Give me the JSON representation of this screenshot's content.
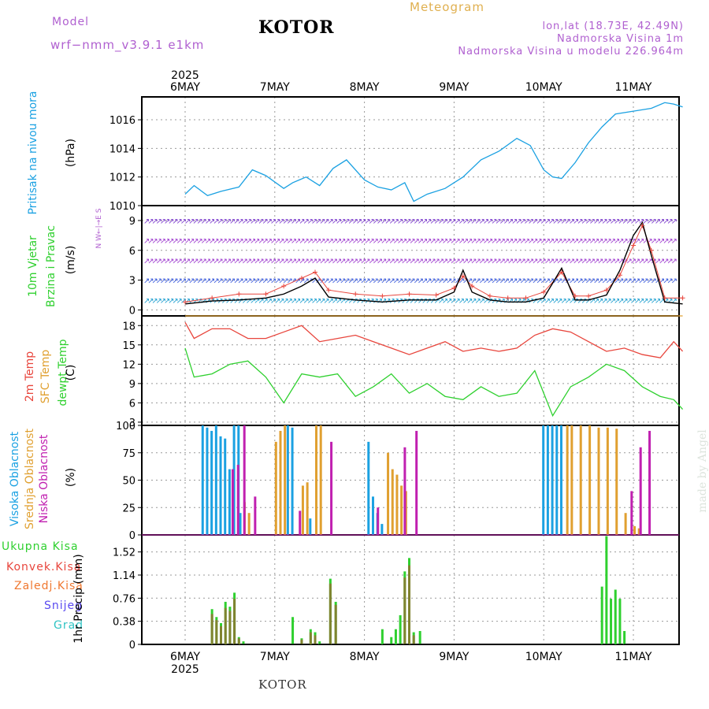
{
  "header": {
    "model_label": "Model",
    "model_name": "wrf−nmm_v3.9.1 e1km",
    "title": "KOTOR",
    "subtitle": "Meteogram",
    "lonlat": "lon,lat (18.73E, 42.49N)",
    "altitude": "Nadmorska Visina 1m",
    "model_altitude": "Nadmorska Visina u modelu 226.964m"
  },
  "footer": {
    "station": "KOTOR",
    "watermark": "made by Angel"
  },
  "colors": {
    "pressure": "#1ba1e2",
    "temp": "#e8453c",
    "sfc": "#e0a030",
    "dew": "#2fd02f",
    "high": "#1ba1e2",
    "mid": "#e0a030",
    "low": "#c020b0",
    "precip": "#2fd02f",
    "conv": "#e8453c",
    "snow": "#5a4af0",
    "grad": "#2fc4c4"
  },
  "chart_data": [
    {
      "type": "line",
      "panel": "pressure",
      "ylabel": [
        "Pritisak na nivou mora",
        "(hPa)"
      ],
      "ylim": [
        1010,
        1017.6
      ],
      "yticks": [
        "1010",
        "1012",
        "1014",
        "1016"
      ],
      "x_categories_top": [
        "6MAY",
        "7MAY",
        "8MAY",
        "9MAY",
        "10MAY",
        "11MAY"
      ],
      "year": "2025",
      "x": [
        0,
        0.1,
        0.25,
        0.4,
        0.6,
        0.75,
        0.9,
        1.1,
        1.2,
        1.35,
        1.5,
        1.65,
        1.8,
        2.0,
        2.15,
        2.3,
        2.45,
        2.55,
        2.7,
        2.9,
        3.1,
        3.3,
        3.5,
        3.7,
        3.85,
        4.0,
        4.1,
        4.2,
        4.35,
        4.5,
        4.65,
        4.8,
        5.0,
        5.2,
        5.35,
        5.45,
        5.55
      ],
      "series": [
        {
          "values": [
            1010.8,
            1011.4,
            1010.7,
            1011.0,
            1011.3,
            1012.5,
            1012.1,
            1011.2,
            1011.6,
            1012.0,
            1011.4,
            1012.6,
            1013.2,
            1011.8,
            1011.3,
            1011.1,
            1011.6,
            1010.3,
            1010.8,
            1011.2,
            1012.0,
            1013.2,
            1013.8,
            1014.7,
            1014.2,
            1012.5,
            1012.0,
            1011.9,
            1013.0,
            1014.4,
            1015.5,
            1016.4,
            1016.6,
            1016.8,
            1017.2,
            1017.1,
            1016.9
          ]
        }
      ]
    },
    {
      "type": "line",
      "panel": "wind",
      "ylabel": [
        "10m Vjetar",
        "Brzina i Pravac",
        "(m/s)"
      ],
      "ylim": [
        -0.6,
        10.5
      ],
      "yticks": [
        "0",
        "3",
        "6",
        "9"
      ],
      "compass": "N W←|→E S",
      "x": [
        0,
        0.3,
        0.6,
        0.9,
        1.1,
        1.3,
        1.45,
        1.6,
        1.9,
        2.2,
        2.5,
        2.8,
        3.0,
        3.1,
        3.2,
        3.4,
        3.6,
        3.8,
        4.0,
        4.2,
        4.35,
        4.5,
        4.7,
        4.85,
        5.0,
        5.1,
        5.2,
        5.35,
        5.55
      ],
      "series": [
        {
          "values": [
            0.8,
            1.2,
            1.6,
            1.6,
            2.4,
            3.2,
            3.8,
            2.0,
            1.6,
            1.4,
            1.6,
            1.5,
            2.2,
            3.4,
            2.4,
            1.4,
            1.2,
            1.2,
            1.8,
            3.8,
            1.4,
            1.4,
            2.0,
            3.5,
            6.5,
            8.5,
            6.0,
            1.2,
            1.2
          ],
          "color": "#e8453c"
        },
        {
          "values": [
            0.6,
            0.9,
            1.0,
            1.2,
            1.6,
            2.4,
            3.2,
            1.3,
            1.0,
            0.8,
            1.0,
            1.0,
            1.8,
            4.0,
            1.8,
            1.0,
            0.8,
            0.8,
            1.2,
            4.2,
            1.0,
            1.0,
            1.5,
            4.0,
            7.5,
            8.8,
            5.5,
            0.8,
            0.6
          ],
          "color": "#000000"
        }
      ]
    },
    {
      "type": "line",
      "panel": "temperature",
      "ylabel": [
        "2m Temp",
        "SFC Temp",
        "dewpt Temp",
        "(C)"
      ],
      "ylim": [
        2.5,
        19.5
      ],
      "yticks": [
        "3",
        "6",
        "9",
        "12",
        "15",
        "18"
      ],
      "x": [
        0,
        0.1,
        0.3,
        0.5,
        0.7,
        0.9,
        1.1,
        1.3,
        1.5,
        1.7,
        1.9,
        2.1,
        2.3,
        2.5,
        2.7,
        2.9,
        3.1,
        3.3,
        3.5,
        3.7,
        3.9,
        4.1,
        4.3,
        4.5,
        4.7,
        4.9,
        5.1,
        5.3,
        5.45,
        5.55
      ],
      "series": [
        {
          "name": "2m Temp",
          "values": [
            18.5,
            16.0,
            17.5,
            17.5,
            16.0,
            16.0,
            17.0,
            18.0,
            15.5,
            16.0,
            16.5,
            15.5,
            14.5,
            13.5,
            14.5,
            15.5,
            14.0,
            14.5,
            14.0,
            14.5,
            16.5,
            17.5,
            17.0,
            15.5,
            14.0,
            14.5,
            13.5,
            13.0,
            15.5,
            14.0
          ],
          "color": "#e8453c"
        },
        {
          "name": "SFC Temp",
          "values": [
            19.5,
            19.5,
            19.5,
            19.5,
            19.5,
            19.5,
            19.5,
            19.5,
            19.5,
            19.5,
            19.5,
            19.5,
            19.5,
            19.5,
            19.5,
            19.5,
            19.5,
            19.5,
            19.5,
            19.5,
            19.5,
            19.5,
            19.5,
            19.5,
            19.5,
            19.5,
            19.5,
            19.5,
            19.5,
            19.5
          ],
          "color": "#e0a030"
        },
        {
          "name": "dewpt Temp",
          "values": [
            14.5,
            10.0,
            10.5,
            12.0,
            12.5,
            10.0,
            6.0,
            10.5,
            10.0,
            10.5,
            7.0,
            8.5,
            10.5,
            7.5,
            9.0,
            7.0,
            6.5,
            8.5,
            7.0,
            7.5,
            11.0,
            4.0,
            8.5,
            10.0,
            12.0,
            11.0,
            8.5,
            7.0,
            6.5,
            5.0
          ],
          "color": "#2fd02f"
        }
      ]
    },
    {
      "type": "bar",
      "panel": "cloud",
      "ylabel": [
        "Visoka Oblacnost",
        "Srednja Oblacnost",
        "Niska Oblacnost",
        "(%)"
      ],
      "ylim": [
        0,
        100
      ],
      "yticks": [
        "0",
        "25",
        "50",
        "75",
        "100"
      ],
      "series": [
        {
          "name": "Visoka Oblacnost",
          "color": "#1ba1e2",
          "x": [
            0.2,
            0.25,
            0.3,
            0.35,
            0.4,
            0.45,
            0.5,
            0.55,
            0.6,
            0.62,
            1.15,
            1.2,
            1.4,
            2.05,
            2.1,
            2.15,
            2.2,
            4.0,
            4.05,
            4.1,
            4.15,
            4.2
          ],
          "values": [
            100,
            98,
            95,
            100,
            90,
            88,
            60,
            100,
            100,
            20,
            100,
            98,
            15,
            85,
            35,
            20,
            10,
            100,
            100,
            100,
            100,
            100
          ]
        },
        {
          "name": "Srednja Oblacnost",
          "color": "#e0a030",
          "x": [
            0.65,
            0.7,
            1.0,
            1.05,
            1.1,
            1.3,
            1.35,
            1.45,
            1.5,
            2.25,
            2.3,
            2.35,
            2.4,
            2.45,
            4.25,
            4.3,
            4.4,
            4.5,
            4.6,
            4.7,
            4.8,
            4.9,
            5.0,
            5.05
          ],
          "values": [
            30,
            20,
            85,
            95,
            100,
            45,
            48,
            100,
            100,
            75,
            60,
            55,
            45,
            40,
            100,
            100,
            100,
            100,
            98,
            98,
            97,
            20,
            8,
            6
          ]
        },
        {
          "name": "Niska Oblacnost",
          "color": "#c020b0",
          "x": [
            0.5,
            0.56,
            0.63,
            0.75,
            1.25,
            1.6,
            2.12,
            2.42,
            2.55,
            4.95,
            5.05,
            5.15
          ],
          "values": [
            60,
            64,
            100,
            35,
            22,
            85,
            25,
            80,
            95,
            40,
            80,
            95
          ]
        }
      ]
    },
    {
      "type": "bar",
      "panel": "precip",
      "ylabel": [
        "Ukupna Kisa",
        "Konvek.Kisa",
        "Zaledj.Kisa",
        "Snijeg",
        "Grad",
        "1hr Precip (mm)"
      ],
      "ylim": [
        0,
        1.8
      ],
      "yticks": [
        "0",
        "0.38",
        "0.76",
        "1.14",
        "1.52"
      ],
      "x_categories_bottom": [
        "6MAY",
        "7MAY",
        "8MAY",
        "9MAY",
        "10MAY",
        "11MAY"
      ],
      "year": "2025",
      "series": [
        {
          "name": "Ukupna Kisa",
          "color": "#2fd02f",
          "x": [
            0.3,
            0.35,
            0.4,
            0.45,
            0.5,
            0.55,
            0.6,
            0.65,
            1.2,
            1.3,
            1.4,
            1.45,
            1.5,
            1.62,
            1.68,
            2.2,
            2.3,
            2.35,
            2.4,
            2.45,
            2.5,
            2.55,
            2.62,
            4.65,
            4.7,
            4.75,
            4.8,
            4.85,
            4.9
          ],
          "values": [
            0.58,
            0.45,
            0.35,
            0.7,
            0.62,
            0.85,
            0.12,
            0.05,
            0.45,
            0.1,
            0.25,
            0.2,
            0.05,
            1.08,
            0.7,
            0.25,
            0.12,
            0.25,
            0.48,
            1.2,
            1.42,
            0.2,
            0.22,
            0.95,
            1.78,
            0.75,
            0.9,
            0.75,
            0.22
          ]
        },
        {
          "name": "Konvek.Kisa",
          "color": "#e8453c",
          "x": [
            0.3,
            0.35,
            0.4,
            0.45,
            0.5,
            0.55,
            0.6,
            1.3,
            1.4,
            1.45,
            1.62,
            1.68,
            2.45,
            2.5,
            2.55
          ],
          "values": [
            0.5,
            0.4,
            0.3,
            0.6,
            0.55,
            0.75,
            0.1,
            0.08,
            0.2,
            0.15,
            1.0,
            0.65,
            1.1,
            1.3,
            0.15
          ]
        }
      ]
    }
  ]
}
